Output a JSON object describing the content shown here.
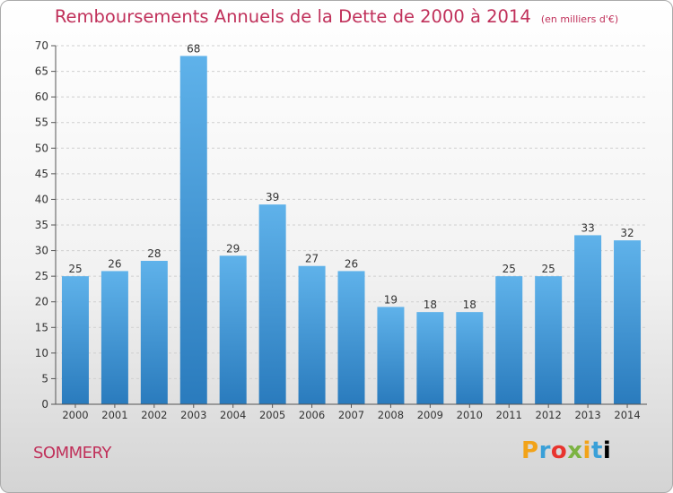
{
  "chart_data": {
    "type": "bar",
    "title": "Remboursements Annuels de la Dette de 2000 à 2014",
    "subtitle": "(en milliers d'€)",
    "categories": [
      "2000",
      "2001",
      "2002",
      "2003",
      "2004",
      "2005",
      "2006",
      "2007",
      "2008",
      "2009",
      "2010",
      "2011",
      "2012",
      "2013",
      "2014"
    ],
    "values": [
      25,
      26,
      28,
      68,
      29,
      39,
      27,
      26,
      19,
      18,
      18,
      25,
      25,
      33,
      32
    ],
    "ylim": [
      0,
      70
    ],
    "yticks": [
      0,
      5,
      10,
      15,
      20,
      25,
      30,
      35,
      40,
      45,
      50,
      55,
      60,
      65,
      70
    ],
    "xlabel": "",
    "ylabel": "",
    "grid": true,
    "colors": {
      "bar_top": "#5fb2ea",
      "bar_bottom": "#2a7bbd",
      "title": "#c0305a"
    }
  },
  "footer": {
    "location": "SOMMERY",
    "brand_letters": [
      "P",
      "r",
      "o",
      "x",
      "i",
      "t",
      "i"
    ]
  }
}
